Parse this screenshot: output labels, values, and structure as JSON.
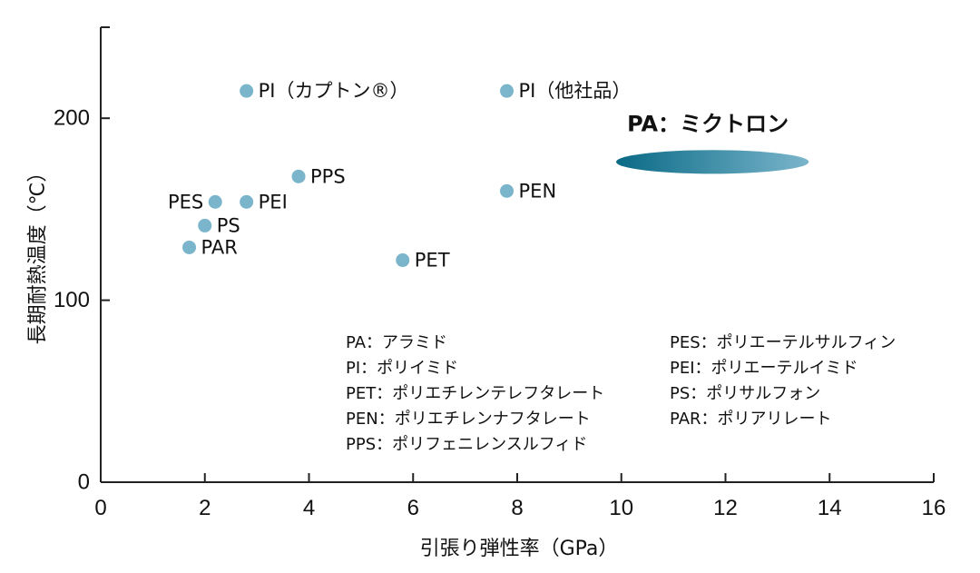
{
  "chart_data": {
    "type": "scatter",
    "xlabel": "引張り弾性率（GPa）",
    "ylabel": "長期耐熱温度（℃）",
    "xlim": [
      0,
      16
    ],
    "ylim": [
      0,
      250
    ],
    "xticks": [
      0,
      2,
      4,
      6,
      8,
      10,
      12,
      14,
      16
    ],
    "yticks": [
      0,
      100,
      200
    ],
    "point_color": "#7ab5cb",
    "points": [
      {
        "label": "PI（カプトン®）",
        "x": 2.8,
        "y": 215
      },
      {
        "label": "PI（他社品）",
        "x": 7.8,
        "y": 215
      },
      {
        "label": "PPS",
        "x": 3.8,
        "y": 168
      },
      {
        "label": "PEN",
        "x": 7.8,
        "y": 160
      },
      {
        "label": "PES",
        "x": 2.2,
        "y": 154
      },
      {
        "label": "PEI",
        "x": 2.8,
        "y": 154
      },
      {
        "label": "PS",
        "x": 2.0,
        "y": 141
      },
      {
        "label": "PAR",
        "x": 1.7,
        "y": 129
      },
      {
        "label": "PET",
        "x": 5.8,
        "y": 122
      }
    ],
    "highlight_region": {
      "label": "PA：ミクトロン",
      "x_range": [
        9.9,
        13.6
      ],
      "y": 176,
      "y_halfheight": 6.5,
      "gradient": [
        "#0a6a86",
        "#7ab5cb"
      ]
    },
    "legend_left": [
      "PA：アラミド",
      "PI：ポリイミド",
      "PET：ポリエチレンテレフタレート",
      "PEN：ポリエチレンナフタレート",
      "PPS：ポリフェニレンスルフィド"
    ],
    "legend_right": [
      "PES：ポリエーテルサルフィン",
      "PEI：ポリエーテルイミド",
      "PS：ポリサルフォン",
      "PAR：ポリアリレート"
    ]
  }
}
